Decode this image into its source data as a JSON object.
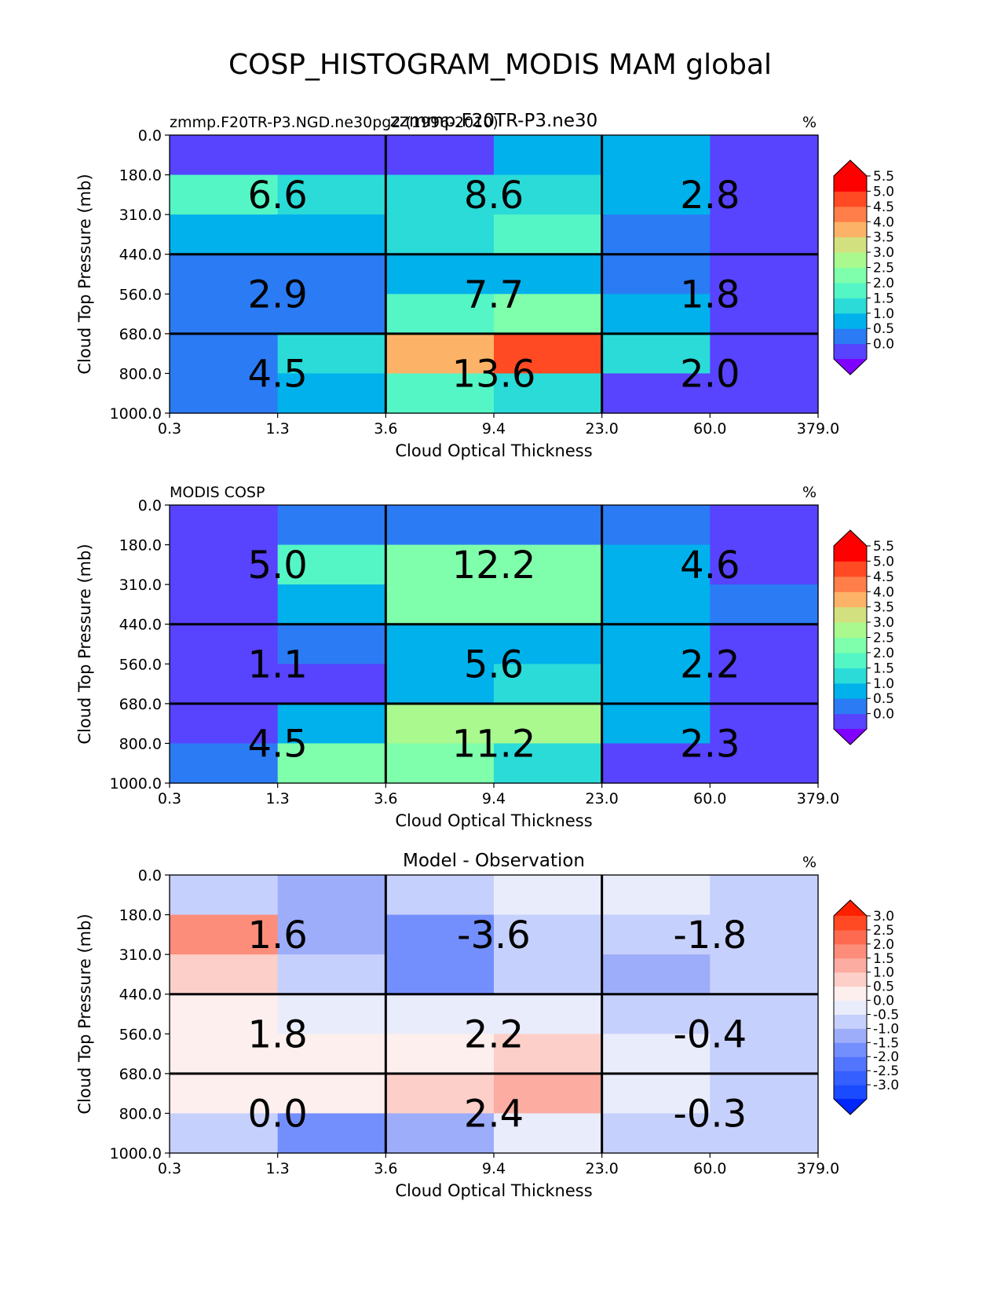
{
  "figure": {
    "title": "COSP_HISTOGRAM_MODIS MAM global"
  },
  "colormaps": {
    "absolute": [
      "#5843ff",
      "#2b7bf5",
      "#00b1ec",
      "#2adbd8",
      "#54f6c6",
      "#7fffab",
      "#a9f98f",
      "#d3e07f",
      "#fdb367",
      "#ff7e49",
      "#ff4a24",
      "#ff0000"
    ],
    "absolute_under": "#8000ff",
    "absolute_over": "#ff0000",
    "difference": [
      "#1b4bff",
      "#3560ff",
      "#5275ff",
      "#738ffd",
      "#9eadfa",
      "#c6d0fc",
      "#e9ecfb",
      "#fdefed",
      "#fdcfc9",
      "#fcaca0",
      "#fc8d7a",
      "#fd6a50",
      "#ff4a24"
    ],
    "difference_under": "#0026ff",
    "difference_over": "#ff2000"
  },
  "chart_data": [
    {
      "type": "heatmap",
      "title": "zzmmp.F20TR-P3.ne30",
      "left_title": "zmmp.F20TR-P3.NGD.ne30pg2 (1996-2010)",
      "units": "%",
      "xlabel": "Cloud Optical Thickness",
      "ylabel": "Cloud Top Pressure (mb)",
      "x_ticks": [
        "0.3",
        "1.3",
        "3.6",
        "9.4",
        "23.0",
        "60.0",
        "379.0"
      ],
      "y_ticks": [
        "0.0",
        "180.0",
        "310.0",
        "440.0",
        "560.0",
        "680.0",
        "800.0",
        "1000.0"
      ],
      "colormap": "absolute",
      "levels": [
        0.0,
        0.5,
        1.0,
        1.5,
        2.0,
        2.5,
        3.0,
        3.5,
        4.0,
        4.5,
        5.0,
        5.5
      ],
      "colorbar_ticks": [
        "5.5",
        "5.0",
        "4.5",
        "4.0",
        "3.5",
        "3.0",
        "2.5",
        "2.0",
        "1.5",
        "1.0",
        "0.5",
        "0.0"
      ],
      "grid_values": [
        [
          0.3,
          0.3,
          0.3,
          1.0,
          1.0,
          0.3
        ],
        [
          2.2,
          1.9,
          1.8,
          1.8,
          1.2,
          0.3
        ],
        [
          1.2,
          1.2,
          1.9,
          2.3,
          0.8,
          0.3
        ],
        [
          0.8,
          0.8,
          1.2,
          1.2,
          0.8,
          0.3
        ],
        [
          0.8,
          0.8,
          2.2,
          2.7,
          1.2,
          0.3
        ],
        [
          0.8,
          1.9,
          4.3,
          5.2,
          1.9,
          0.3
        ],
        [
          0.8,
          1.2,
          2.2,
          1.9,
          0.3,
          0.3
        ]
      ],
      "box_values": [
        [
          "6.6",
          "8.6",
          "2.8"
        ],
        [
          "2.9",
          "7.7",
          "1.8"
        ],
        [
          "4.5",
          "13.6",
          "2.0"
        ]
      ]
    },
    {
      "type": "heatmap",
      "title": "",
      "left_title": "MODIS COSP",
      "units": "%",
      "xlabel": "Cloud Optical Thickness",
      "ylabel": "Cloud Top Pressure (mb)",
      "x_ticks": [
        "0.3",
        "1.3",
        "3.6",
        "9.4",
        "23.0",
        "60.0",
        "379.0"
      ],
      "y_ticks": [
        "0.0",
        "180.0",
        "310.0",
        "440.0",
        "560.0",
        "680.0",
        "800.0",
        "1000.0"
      ],
      "colormap": "absolute",
      "levels": [
        0.0,
        0.5,
        1.0,
        1.5,
        2.0,
        2.5,
        3.0,
        3.5,
        4.0,
        4.5,
        5.0,
        5.5
      ],
      "colorbar_ticks": [
        "5.5",
        "5.0",
        "4.5",
        "4.0",
        "3.5",
        "3.0",
        "2.5",
        "2.0",
        "1.5",
        "1.0",
        "0.5",
        "0.0"
      ],
      "grid_values": [
        [
          0.3,
          0.8,
          0.8,
          0.8,
          0.8,
          0.3
        ],
        [
          0.3,
          2.2,
          2.7,
          2.7,
          1.2,
          0.3
        ],
        [
          0.3,
          1.2,
          2.7,
          2.7,
          1.2,
          0.8
        ],
        [
          0.3,
          0.8,
          1.2,
          1.2,
          1.2,
          0.3
        ],
        [
          0.3,
          0.3,
          1.2,
          1.8,
          1.2,
          0.3
        ],
        [
          0.3,
          1.2,
          3.2,
          3.2,
          1.2,
          0.3
        ],
        [
          0.8,
          2.7,
          2.7,
          1.8,
          0.3,
          0.3
        ]
      ],
      "box_values": [
        [
          "5.0",
          "12.2",
          "4.6"
        ],
        [
          "1.1",
          "5.6",
          "2.2"
        ],
        [
          "4.5",
          "11.2",
          "2.3"
        ]
      ]
    },
    {
      "type": "heatmap",
      "title": "Model - Observation",
      "left_title": "",
      "units": "%",
      "xlabel": "Cloud Optical Thickness",
      "ylabel": "Cloud Top Pressure (mb)",
      "x_ticks": [
        "0.3",
        "1.3",
        "3.6",
        "9.4",
        "23.0",
        "60.0",
        "379.0"
      ],
      "y_ticks": [
        "0.0",
        "180.0",
        "310.0",
        "440.0",
        "560.0",
        "680.0",
        "800.0",
        "1000.0"
      ],
      "colormap": "difference",
      "levels": [
        -3.0,
        -2.5,
        -2.0,
        -1.5,
        -1.0,
        -0.5,
        0.0,
        0.5,
        1.0,
        1.5,
        2.0,
        2.5,
        3.0
      ],
      "colorbar_ticks": [
        "3.0",
        "2.5",
        "2.0",
        "1.5",
        "1.0",
        "0.5",
        "0.0",
        "-0.5",
        "-1.0",
        "-1.5",
        "-2.0",
        "-2.5",
        "-3.0"
      ],
      "grid_values": [
        [
          -0.2,
          -0.7,
          -0.2,
          0.2,
          0.2,
          -0.2
        ],
        [
          2.2,
          -0.7,
          -1.2,
          -0.2,
          -0.2,
          -0.2
        ],
        [
          1.2,
          -0.2,
          -1.2,
          -0.2,
          -0.7,
          -0.2
        ],
        [
          0.7,
          0.2,
          0.2,
          0.2,
          -0.2,
          -0.2
        ],
        [
          0.7,
          0.7,
          0.7,
          1.2,
          0.2,
          -0.2
        ],
        [
          0.7,
          0.7,
          1.2,
          1.7,
          0.2,
          -0.2
        ],
        [
          -0.2,
          -1.2,
          -0.7,
          0.2,
          -0.2,
          -0.2
        ]
      ],
      "box_values": [
        [
          "1.6",
          "-3.6",
          "-1.8"
        ],
        [
          "1.8",
          "2.2",
          "-0.4"
        ],
        [
          "0.0",
          "2.4",
          "-0.3"
        ]
      ]
    }
  ]
}
